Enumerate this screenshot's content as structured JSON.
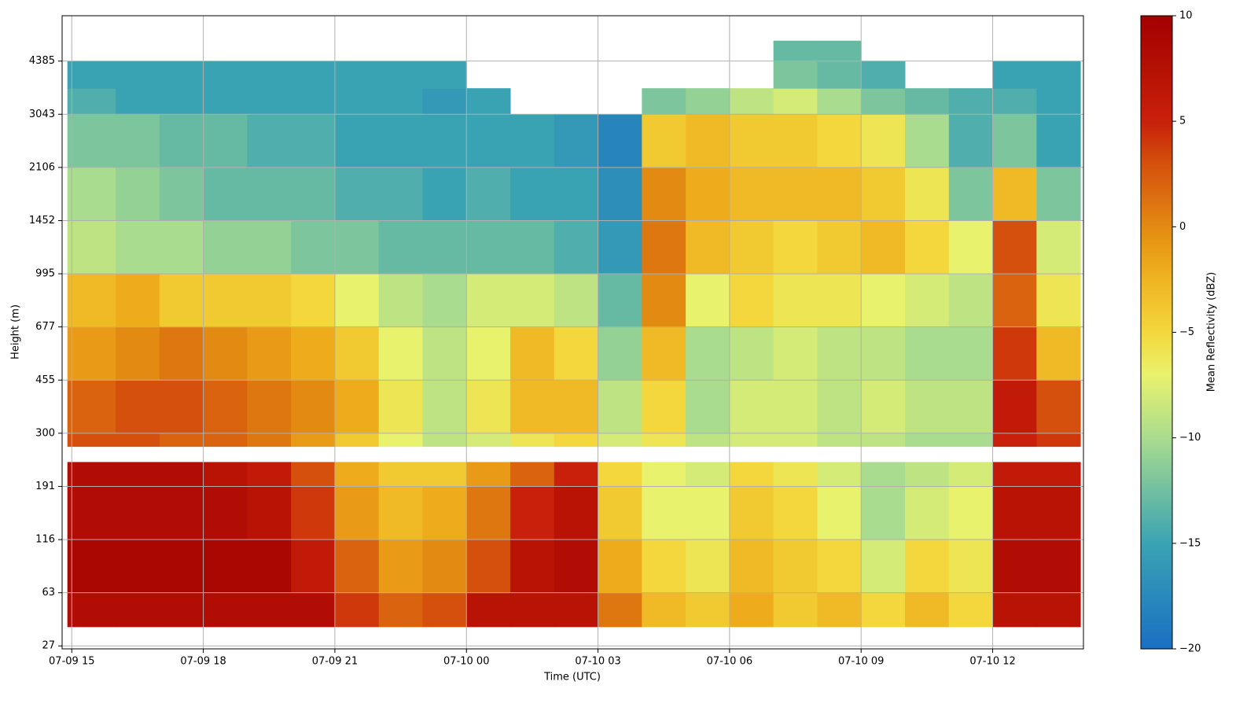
{
  "chart_data": {
    "type": "heatmap",
    "xlabel": "Time (UTC)",
    "ylabel": "Height (m)",
    "xlim": [
      14.78,
      38.07
    ],
    "xticks": [
      {
        "value": 15,
        "label": "07-09 15"
      },
      {
        "value": 18,
        "label": "07-09 18"
      },
      {
        "value": 21,
        "label": "07-09 21"
      },
      {
        "value": 24,
        "label": "07-10 00"
      },
      {
        "value": 27,
        "label": "07-10 03"
      },
      {
        "value": 30,
        "label": "07-10 06"
      },
      {
        "value": 33,
        "label": "07-10 09"
      },
      {
        "value": 36,
        "label": "07-10 12"
      }
    ],
    "ylim": [
      25,
      5530
    ],
    "yticks": [
      27,
      63,
      116,
      191,
      300,
      455,
      677,
      995,
      1452,
      2106,
      3043,
      4385
    ],
    "grid": true,
    "x_edges": [
      14.9,
      16,
      17,
      18,
      19,
      20,
      21,
      22,
      23,
      24,
      25,
      26,
      27,
      28,
      29,
      30,
      31,
      32,
      33,
      34,
      35,
      36,
      37,
      38
    ],
    "y_edges": [
      40,
      63,
      116,
      191,
      241,
      273,
      300,
      455,
      677,
      995,
      1452,
      2106,
      3043,
      3700,
      4385,
      4900
    ],
    "values": [
      [
        8,
        8,
        8,
        8,
        8,
        8,
        4,
        2,
        3,
        7,
        7,
        7,
        1,
        -3,
        -4,
        -2,
        -4,
        -3,
        -5,
        -3,
        -5,
        7,
        7
      ],
      [
        9,
        9,
        9,
        9,
        9,
        6,
        2,
        -1,
        0,
        3,
        7,
        8,
        -2,
        -5,
        -6,
        -3,
        -4,
        -5,
        -8,
        -5,
        -6,
        8,
        8
      ],
      [
        8,
        8,
        8,
        8,
        7,
        4,
        -1,
        -3,
        -2,
        1,
        5,
        7,
        -4,
        -7,
        -7,
        -4,
        -5,
        -7,
        -10,
        -8,
        -7,
        7,
        7
      ],
      [
        8,
        8,
        8,
        7,
        6,
        3,
        -2,
        -4,
        -4,
        -1,
        2,
        5,
        -5,
        -7,
        -8,
        -5,
        -6,
        -8,
        -10,
        -9,
        -8,
        6,
        6
      ],
      [
        null,
        null,
        null,
        null,
        null,
        null,
        null,
        null,
        null,
        null,
        null,
        null,
        null,
        null,
        null,
        null,
        null,
        null,
        null,
        null,
        null,
        null,
        null
      ],
      [
        3,
        3,
        2,
        2,
        1,
        -1,
        -4,
        -7,
        -9,
        -8,
        -6,
        -5,
        -8,
        -6,
        -9,
        -8,
        -8,
        -9,
        -9,
        -10,
        -10,
        5,
        4
      ],
      [
        2,
        3,
        3,
        2,
        1,
        0,
        -2,
        -6,
        -9,
        -6,
        -3,
        -3,
        -9,
        -5,
        -10,
        -8,
        -8,
        -9,
        -8,
        -9,
        -9,
        6,
        3
      ],
      [
        -1,
        0,
        1,
        0,
        -1,
        -2,
        -4,
        -7,
        -9,
        -7,
        -3,
        -5,
        -11,
        -3,
        -10,
        -9,
        -8,
        -9,
        -9,
        -10,
        -10,
        4,
        -3
      ],
      [
        -3,
        -2,
        -4,
        -4,
        -4,
        -5,
        -7,
        -9,
        -10,
        -8,
        -8,
        -9,
        -13,
        0,
        -7,
        -5,
        -6,
        -6,
        -7,
        -8,
        -9,
        2,
        -6
      ],
      [
        -9,
        -10,
        -10,
        -11,
        -11,
        -12,
        -12,
        -13,
        -13,
        -13,
        -13,
        -14,
        -16,
        1,
        -3,
        -4,
        -5,
        -4,
        -3,
        -5,
        -7,
        3,
        -8
      ],
      [
        -10,
        -11,
        -12,
        -13,
        -13,
        -13,
        -14,
        -14,
        -15,
        -14,
        -15,
        -15,
        -17,
        0,
        -2,
        -3,
        -3,
        -3,
        -4,
        -6,
        -12,
        -3,
        -12
      ],
      [
        -12,
        -12,
        -13,
        -13,
        -14,
        -14,
        -15,
        -15,
        -15,
        -15,
        -15,
        -16,
        -18,
        -4,
        -3,
        -4,
        -4,
        -5,
        -6,
        -10,
        -14,
        -12,
        -15
      ],
      [
        -14,
        -15,
        -15,
        -15,
        -15,
        -15,
        -15,
        -15,
        -16,
        -15,
        null,
        null,
        null,
        -12,
        -11,
        -9,
        -8,
        -10,
        -12,
        -13,
        -14,
        -14,
        -15
      ],
      [
        -15,
        -15,
        -15,
        -15,
        -15,
        -15,
        -15,
        -15,
        -15,
        null,
        null,
        null,
        null,
        null,
        null,
        null,
        -12,
        -13,
        -14,
        null,
        null,
        -15,
        -15
      ],
      [
        null,
        null,
        null,
        null,
        null,
        null,
        null,
        null,
        null,
        null,
        null,
        null,
        null,
        null,
        null,
        null,
        -13,
        -13,
        null,
        null,
        null,
        null,
        null
      ]
    ],
    "colorscale": [
      {
        "value": -20,
        "color": "#1a6fc4"
      },
      {
        "value": -15,
        "color": "#3aa3b3"
      },
      {
        "value": -10,
        "color": "#a9dc8e"
      },
      {
        "value": -7,
        "color": "#e9f26c"
      },
      {
        "value": -5,
        "color": "#f3d73c"
      },
      {
        "value": -2,
        "color": "#eeac1c"
      },
      {
        "value": 0,
        "color": "#e38a12"
      },
      {
        "value": 3,
        "color": "#d4500c"
      },
      {
        "value": 5,
        "color": "#c8200a"
      },
      {
        "value": 10,
        "color": "#a30000"
      }
    ],
    "colorbar": {
      "label": "Mean Reflectivity (dBZ)",
      "lim": [
        -20,
        10
      ],
      "ticks": [
        {
          "value": -20,
          "label": "−20"
        },
        {
          "value": -15,
          "label": "−15"
        },
        {
          "value": -10,
          "label": "−10"
        },
        {
          "value": -5,
          "label": "−5"
        },
        0,
        5,
        10
      ]
    }
  }
}
